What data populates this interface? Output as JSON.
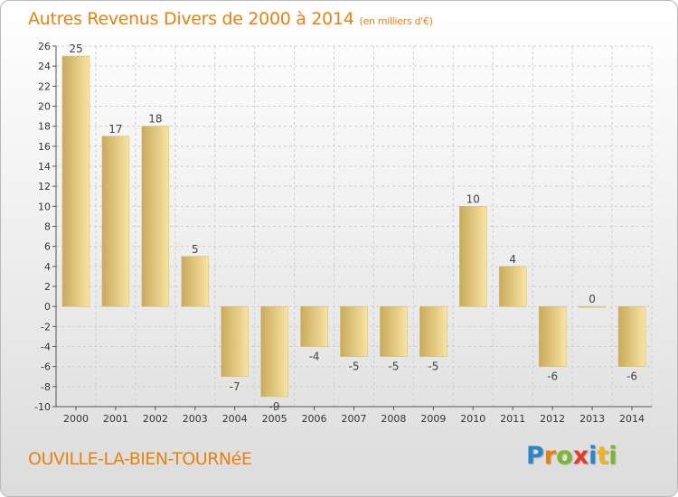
{
  "title": "Autres Revenus Divers de 2000 à 2014",
  "unit": "(en milliers d'€)",
  "commune": "OUVILLE-LA-BIEN-TOURNéE",
  "logo": {
    "letters": [
      {
        "ch": "P",
        "color": "#2a86c8"
      },
      {
        "ch": "r",
        "color": "#e8820e"
      },
      {
        "ch": "o",
        "color": "#7bb82e"
      },
      {
        "ch": "x",
        "color": "#e23b2a"
      },
      {
        "ch": "i",
        "color": "#2a86c8"
      },
      {
        "ch": "t",
        "color": "#f2b31b"
      },
      {
        "ch": "i",
        "color": "#7bb82e"
      }
    ]
  },
  "colors": {
    "title": "#e8820e",
    "bar_light": "#f9e4a3",
    "bar_dark": "#c8aa5c",
    "grid": "#cfcfcf",
    "axis": "#555555"
  },
  "chart_data": {
    "type": "bar",
    "title": "Autres Revenus Divers de 2000 à 2014",
    "subtitle": "(en milliers d'€)",
    "categories": [
      "2000",
      "2001",
      "2002",
      "2003",
      "2004",
      "2005",
      "2006",
      "2007",
      "2008",
      "2009",
      "2010",
      "2011",
      "2012",
      "2013",
      "2014"
    ],
    "values": [
      25,
      17,
      18,
      5,
      -7,
      -9,
      -4,
      -5,
      -5,
      -5,
      10,
      4,
      -6,
      0,
      -6
    ],
    "ylim": [
      -10,
      26
    ],
    "yticks": [
      -10,
      -8,
      -6,
      -4,
      -2,
      0,
      2,
      4,
      6,
      8,
      10,
      12,
      14,
      16,
      18,
      20,
      22,
      24,
      26
    ],
    "grid": true,
    "legend": "none"
  }
}
